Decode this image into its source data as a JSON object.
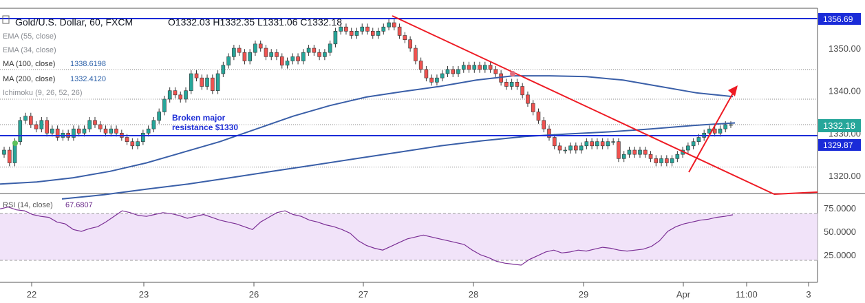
{
  "header": {
    "title": "Gold/U.S. Dollar, 60, FXCM",
    "ohlc": "O1332.03   H1332.35   L1331.06   C1332.18"
  },
  "indicators": [
    {
      "name": "EMA (55, close)",
      "value": ""
    },
    {
      "name": "EMA (34, close)",
      "value": ""
    },
    {
      "name": "MA (100, close)",
      "value": "1338.6198"
    },
    {
      "name": "MA (200, close)",
      "value": "1332.4120"
    },
    {
      "name": "Ichimoku (9, 26, 52, 26)",
      "value": ""
    }
  ],
  "annotation": [
    "Broken major",
    "resistance $1330"
  ],
  "price_tags": {
    "top": "1356.69",
    "current": "1332.18",
    "level": "1329.87"
  },
  "rsi": {
    "label": "RSI (14, close)",
    "value": "67.6807"
  },
  "colors": {
    "up": "#26a69a",
    "down": "#ef5350",
    "ma100": "#3a5fa8",
    "ma200": "#3a5fa8",
    "hline": "#1a2bd8",
    "trend": "#ee1b24",
    "rsi_line": "#7b2f95",
    "rsi_band": "#f1e3f9"
  },
  "chart_data": {
    "type": "candlestick",
    "symbol": "Gold/U.S. Dollar",
    "timeframe": "60",
    "price_ticks": [
      1320,
      1330,
      1340,
      1350
    ],
    "price_tick_labels": [
      "1320.00",
      "1330.00",
      "1340.00",
      "1350.00"
    ],
    "date_labels": [
      "22",
      "23",
      "26",
      "27",
      "28",
      "29",
      "Apr",
      "11:00",
      "3"
    ],
    "rsi_ticks": [
      "25.0000",
      "50.0000",
      "75.0000"
    ],
    "horizontal_levels": [
      1356.69,
      1329.87
    ],
    "annotation_text": "Broken major resistance $1330",
    "candles_close": [
      1326,
      1323,
      1328,
      1333,
      1334,
      1332,
      1331,
      1333,
      1330,
      1331,
      1329,
      1330,
      1329,
      1331,
      1330,
      1331,
      1333,
      1332,
      1331,
      1330,
      1331,
      1330,
      1329,
      1328,
      1327,
      1328,
      1330,
      1331,
      1333,
      1335,
      1338,
      1340,
      1339,
      1338,
      1340,
      1344,
      1343,
      1341,
      1343,
      1340,
      1344,
      1346,
      1348,
      1350,
      1349,
      1347,
      1349,
      1351,
      1350,
      1348,
      1349,
      1348,
      1346,
      1347,
      1348,
      1347,
      1349,
      1350,
      1349,
      1348,
      1349,
      1351,
      1354,
      1355,
      1354,
      1353,
      1354,
      1355,
      1354,
      1353,
      1354,
      1355,
      1356,
      1355,
      1353,
      1352,
      1350,
      1347,
      1345,
      1343,
      1342,
      1343,
      1344,
      1345,
      1344,
      1345,
      1346,
      1345,
      1346,
      1345,
      1346,
      1345,
      1344,
      1342,
      1341,
      1342,
      1341,
      1339,
      1337,
      1335,
      1333,
      1331,
      1329,
      1327,
      1326,
      1326,
      1327,
      1326,
      1327,
      1328,
      1327,
      1328,
      1327,
      1328,
      1328,
      1324,
      1325,
      1326,
      1325,
      1326,
      1325,
      1324,
      1323,
      1324,
      1323,
      1324,
      1325,
      1326,
      1327,
      1328,
      1329,
      1330,
      1331,
      1330,
      1331,
      1332,
      1332
    ],
    "ma100": [
      1318,
      1318.5,
      1319.5,
      1321,
      1323,
      1325.5,
      1328,
      1331,
      1334,
      1336.5,
      1338.5,
      1339.8,
      1341,
      1342.5,
      1343.5,
      1343.5,
      1343.3,
      1342.5,
      1341,
      1339.5,
      1338.6
    ],
    "ma200": [
      1314.5,
      1315.5,
      1316.8,
      1318,
      1319.5,
      1321,
      1322.5,
      1324,
      1325.5,
      1327,
      1328.2,
      1329.2,
      1329.8,
      1330.3,
      1331,
      1331.8,
      1332.4
    ],
    "trendline": {
      "from": [
        0.46,
        1357
      ],
      "to": [
        0.95,
        1317.5
      ]
    },
    "rsi_values": [
      74,
      76,
      73,
      72,
      68,
      66,
      65,
      60,
      58,
      52,
      50,
      53,
      55,
      60,
      66,
      72,
      70,
      67,
      66,
      68,
      70,
      69,
      67,
      64,
      66,
      68,
      65,
      62,
      60,
      58,
      55,
      52,
      60,
      65,
      70,
      72,
      68,
      66,
      62,
      60,
      57,
      55,
      52,
      48,
      40,
      35,
      32,
      30,
      34,
      38,
      42,
      44,
      46,
      44,
      42,
      40,
      38,
      36,
      30,
      25,
      22,
      18,
      16,
      15,
      14,
      20,
      24,
      28,
      30,
      27,
      28,
      30,
      29,
      31,
      33,
      32,
      30,
      29,
      30,
      31,
      34,
      40,
      50,
      55,
      58,
      60,
      62,
      63,
      65,
      66,
      67.7
    ]
  }
}
